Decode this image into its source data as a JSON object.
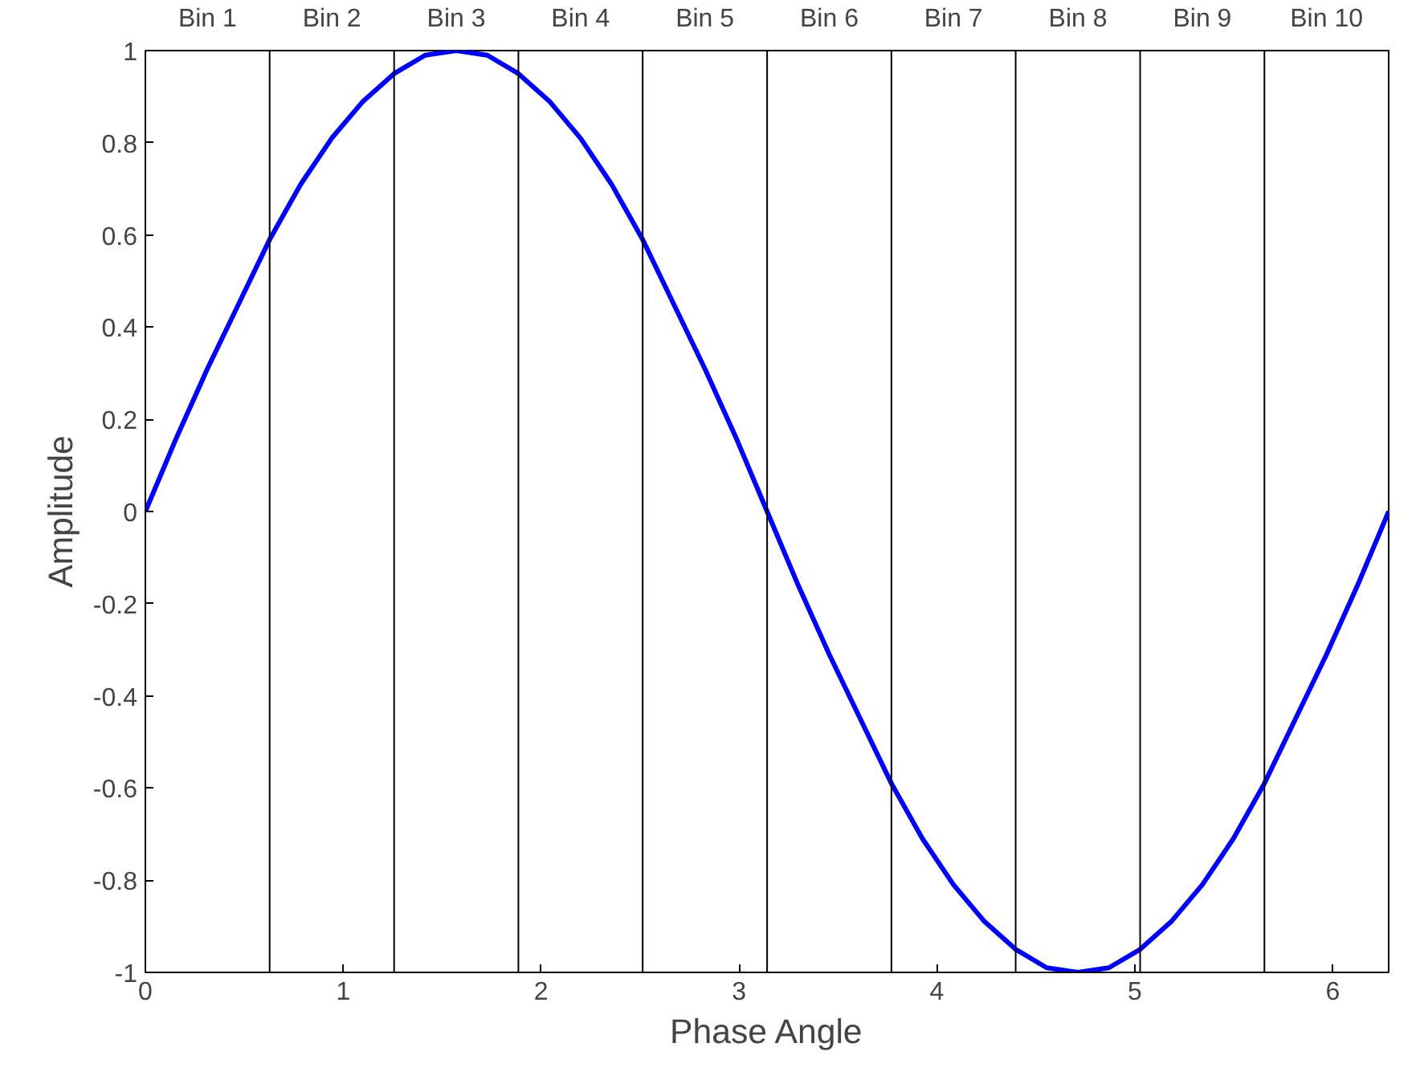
{
  "chart_data": {
    "type": "line",
    "xlabel": "Phase Angle",
    "ylabel": "Amplitude",
    "x": [
      0,
      0.157,
      0.314,
      0.471,
      0.628,
      0.785,
      0.942,
      1.1,
      1.257,
      1.414,
      1.571,
      1.728,
      1.885,
      2.042,
      2.199,
      2.356,
      2.513,
      2.67,
      2.827,
      2.985,
      3.142,
      3.299,
      3.456,
      3.613,
      3.77,
      3.927,
      4.084,
      4.241,
      4.398,
      4.555,
      4.712,
      4.869,
      5.027,
      5.184,
      5.341,
      5.498,
      5.655,
      5.812,
      5.969,
      6.126,
      6.283
    ],
    "series": [
      {
        "color": "#0000ff",
        "values": [
          0,
          0.16,
          0.31,
          0.45,
          0.59,
          0.71,
          0.81,
          0.89,
          0.95,
          0.99,
          1,
          0.99,
          0.95,
          0.89,
          0.81,
          0.71,
          0.59,
          0.45,
          0.31,
          0.16,
          0,
          -0.16,
          -0.31,
          -0.45,
          -0.59,
          -0.71,
          -0.81,
          -0.89,
          -0.95,
          -0.99,
          -1,
          -0.99,
          -0.95,
          -0.89,
          -0.81,
          -0.71,
          -0.59,
          -0.45,
          -0.31,
          -0.16,
          0
        ]
      }
    ],
    "xlim": [
      0,
      6.283
    ],
    "ylim": [
      -1,
      1
    ],
    "xticks": [
      0,
      1,
      2,
      3,
      4,
      5,
      6
    ],
    "yticks": [
      -1,
      -0.8,
      -0.6,
      -0.4,
      -0.2,
      0,
      0.2,
      0.4,
      0.6,
      0.8,
      1
    ],
    "ref_lines": [
      {
        "axis": "x",
        "value": 0.628,
        "color": "#000000"
      },
      {
        "axis": "x",
        "value": 1.257,
        "color": "#000000"
      },
      {
        "axis": "x",
        "value": 1.885,
        "color": "#000000"
      },
      {
        "axis": "x",
        "value": 2.513,
        "color": "#000000"
      },
      {
        "axis": "x",
        "value": 3.142,
        "color": "#000000"
      },
      {
        "axis": "x",
        "value": 3.77,
        "color": "#000000"
      },
      {
        "axis": "x",
        "value": 4.398,
        "color": "#000000"
      },
      {
        "axis": "x",
        "value": 5.027,
        "color": "#000000"
      },
      {
        "axis": "x",
        "value": 5.655,
        "color": "#000000"
      }
    ],
    "annotations": [
      "Bin 1",
      "Bin 2",
      "Bin 3",
      "Bin 4",
      "Bin 5",
      "Bin 6",
      "Bin 7",
      "Bin 8",
      "Bin 9",
      "Bin 10"
    ],
    "grid": false,
    "marker": "none",
    "line_style": "solid"
  }
}
